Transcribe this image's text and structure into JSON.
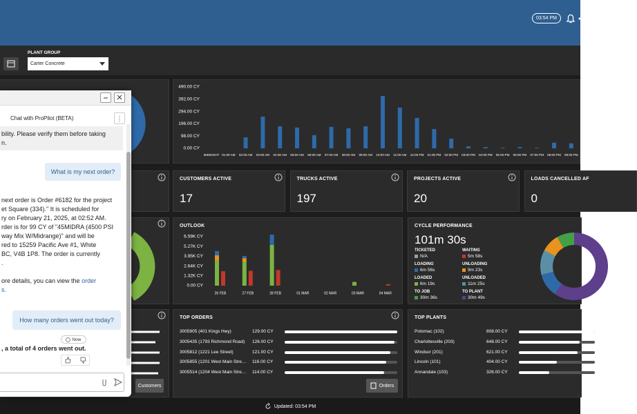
{
  "header": {
    "time": "03:54 PM"
  },
  "filters": {
    "plant_group_label": "PLANT GROUP",
    "plant_group_value": "Carter Concrete"
  },
  "hourly_chart": {
    "type": "bar",
    "color": "#2e6aa8",
    "categories": [
      "MIDNIGHT",
      "01:00 AM",
      "02:00 AM",
      "03:00 AM",
      "04:00 AM",
      "05:00 AM",
      "06:00 AM",
      "07:00 AM",
      "08:00 AM",
      "09:00 AM",
      "10:00 AM",
      "11:00 AM",
      "12:00 PM",
      "01:00 PM",
      "02:00 PM",
      "03:00 PM",
      "04:00 PM",
      "05:00 PM",
      "06:00 PM",
      "07:00 PM",
      "08:00 PM",
      "09:00 PM"
    ],
    "values": [
      0,
      0,
      88,
      253,
      176,
      166,
      105,
      171,
      160,
      176,
      418,
      325,
      243,
      154,
      77,
      16,
      10,
      5,
      10,
      5,
      45,
      40
    ],
    "ylim": [
      0,
      490
    ],
    "yticks": [
      {
        "value": 0,
        "label": "0.00 CY"
      },
      {
        "value": 98,
        "label": "98.00 CY"
      },
      {
        "value": 196,
        "label": "196.00 CY"
      },
      {
        "value": 294,
        "label": "294.00 CY"
      },
      {
        "value": 392,
        "label": "392.00 CY"
      },
      {
        "value": 490,
        "label": "490.00 CY"
      }
    ]
  },
  "kpis": [
    {
      "label": "CUSTOMERS ACTIVE",
      "value": 17
    },
    {
      "label": "TRUCKS ACTIVE",
      "value": 197
    },
    {
      "label": "PROJECTS ACTIVE",
      "value": 20
    },
    {
      "label": "LOADS CANCELLED AF",
      "value": 0
    }
  ],
  "outlook": {
    "type": "bar",
    "title": "OUTLOOK",
    "categories": [
      "26 FEB",
      "27 FEB",
      "28 FEB",
      "01 MAR",
      "02 MAR",
      "03 MAR",
      "04 MAR"
    ],
    "series": [
      {
        "color": "#7cb342",
        "stack": "main",
        "values": [
          3400,
          3200,
          5500,
          0,
          0,
          500,
          0
        ]
      },
      {
        "color": "#e8931e",
        "stack": "main",
        "values": [
          680,
          500,
          0,
          0,
          0,
          0,
          0
        ]
      },
      {
        "color": "#2e6aa8",
        "stack": "main",
        "values": [
          580,
          300,
          1360,
          0,
          0,
          0,
          0
        ]
      },
      {
        "color": "#c0392b",
        "stack": "side",
        "values": [
          1940,
          2000,
          2100,
          0,
          0,
          0,
          200
        ]
      }
    ],
    "ylim": [
      0,
      6590
    ],
    "yticks": [
      {
        "value": 0,
        "label": "0.00 CY"
      },
      {
        "value": 1318,
        "label": "1.32K CY"
      },
      {
        "value": 2636,
        "label": "2.64K CY"
      },
      {
        "value": 3954,
        "label": "3.95K CY"
      },
      {
        "value": 5272,
        "label": "5.27K CY"
      },
      {
        "value": 6590,
        "label": "6.59K CY"
      }
    ]
  },
  "cycle": {
    "title": "CYCLE PERFORMANCE",
    "total": "101m 30s",
    "items": [
      {
        "label": "TICKETED",
        "value": "N/A",
        "color": "#9e9e9e"
      },
      {
        "label": "WAITING",
        "value": "5m 58s",
        "color": "#c0392b"
      },
      {
        "label": "LOADING",
        "value": "6m 56s",
        "color": "#2e6aa8"
      },
      {
        "label": "UNLOADING",
        "value": "9m 23s",
        "color": "#e8931e"
      },
      {
        "label": "LOADED",
        "value": "6m 19s",
        "color": "#7cb342"
      },
      {
        "label": "UNLOADED",
        "value": "11m 25s",
        "color": "#5b8fa8"
      },
      {
        "label": "TO JOB",
        "value": "30m 36s",
        "color": "#43a047"
      },
      {
        "label": "TO PLANT",
        "value": "30m 49s",
        "color": "#5e3f8c"
      }
    ]
  },
  "top_orders": {
    "title": "TOP ORDERS",
    "button": "Orders",
    "rows": [
      {
        "name": "3005905 (401 Kings Hwy)",
        "value": 129,
        "value_label": "129.00 CY"
      },
      {
        "name": "3005435 (1793 Richmond Road)",
        "value": 126,
        "value_label": "126.00 CY"
      },
      {
        "name": "3005812 (1221 Lee Street)",
        "value": 121,
        "value_label": "121.00 CY"
      },
      {
        "name": "3005855 (1201 West Main Stre…",
        "value": 116,
        "value_label": "116.00 CY"
      },
      {
        "name": "3005514 (1204 West Main Stre…",
        "value": 114,
        "value_label": "114.00 CY"
      }
    ]
  },
  "top_plants": {
    "title": "TOP PLANTS",
    "rows": [
      {
        "name": "Potomac (102)",
        "value": 808,
        "value_label": "808.00 CY"
      },
      {
        "name": "Charlottesville (203)",
        "value": 648,
        "value_label": "648.00 CY"
      },
      {
        "name": "Windsor (201)",
        "value": 621,
        "value_label": "621.00 CY"
      },
      {
        "name": "Lincoln (101)",
        "value": 404,
        "value_label": "404.00 CY"
      },
      {
        "name": "Annandale (103)",
        "value": 326,
        "value_label": "326.00 CY"
      }
    ]
  },
  "customers_button": "Customers",
  "chat": {
    "title": "Chat with ProPilot (BETA)",
    "notice_lines": [
      "bility. Please verify them before taking",
      "n."
    ],
    "question_1": "What is my next order?",
    "answer_1_lines": [
      "next order is Order #6182 for the project",
      "et Square (334).\" It is scheduled for",
      "ry on February 21, 2025, at 02:52 AM.",
      "rder is for 99 CY of \"45MIDRA (4500 PSI",
      "way Mix W/Midrange)\" and will be",
      "red to 15259 Pacific Ave #1, White",
      "BC, V4B 1P8. The order is currently",
      "."
    ],
    "details": {
      "text": "ore details, you can view the ",
      "link": "order",
      "link_end": "s."
    },
    "question_2": "How many orders went out today?",
    "answer_2_time": "Now",
    "answer_2": ", a total of 4 orders went out."
  },
  "footer": {
    "updated": "Updated: 03:54 PM"
  }
}
